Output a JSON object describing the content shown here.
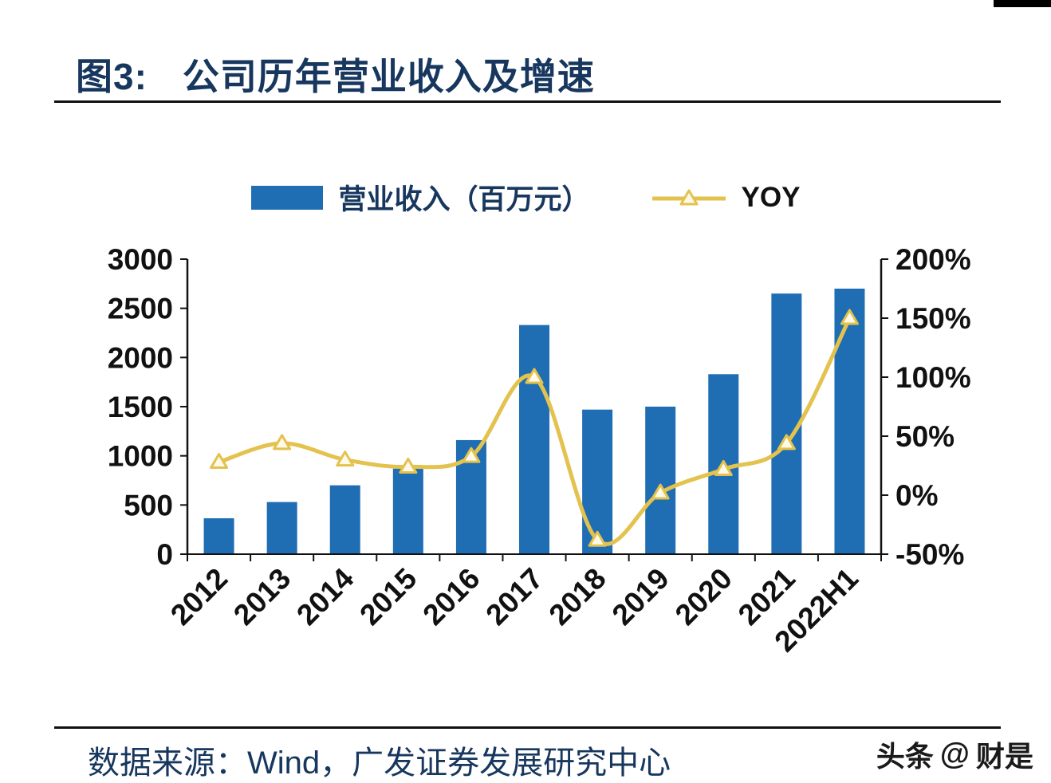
{
  "header": {
    "figure_label": "图3:",
    "title": "公司历年营业收入及增速"
  },
  "footer": {
    "source": "数据来源：Wind，广发证券发展研究中心",
    "watermark_brand": "头条",
    "watermark_at": "@",
    "watermark_name": "财是"
  },
  "chart_data": {
    "type": "bar",
    "subtype": "combo_bar_line_dual_axis",
    "categories": [
      "2012",
      "2013",
      "2014",
      "2015",
      "2016",
      "2017",
      "2018",
      "2019",
      "2020",
      "2021",
      "2022H1"
    ],
    "series": [
      {
        "name": "营业收入（百万元）",
        "type": "bar",
        "axis": "left",
        "color": "#1F6DB3",
        "values": [
          365,
          530,
          700,
          870,
          1160,
          2330,
          1470,
          1500,
          1830,
          2650,
          2700
        ]
      },
      {
        "name": "YOY",
        "type": "line",
        "axis": "right",
        "color": "#E3C24E",
        "marker": "triangle",
        "marker_fill": "#FEF9E8",
        "values_percent": [
          28,
          44,
          30,
          24,
          33,
          100,
          -38,
          2,
          22,
          44,
          150
        ]
      }
    ],
    "left_axis": {
      "min": 0,
      "max": 3000,
      "step": 500,
      "tick_labels": [
        "0",
        "500",
        "1000",
        "1500",
        "2000",
        "2500",
        "3000"
      ]
    },
    "right_axis": {
      "min": -50,
      "max": 200,
      "step": 50,
      "tick_labels": [
        "-50%",
        "0%",
        "50%",
        "100%",
        "150%",
        "200%"
      ]
    },
    "legend": [
      {
        "label": "营业收入（百万元）",
        "marker": "bar-swatch"
      },
      {
        "label": "YOY",
        "marker": "triangle-line"
      }
    ],
    "grid": "off",
    "legend_position": "top-center",
    "title": "公司历年营业收入及增速"
  }
}
